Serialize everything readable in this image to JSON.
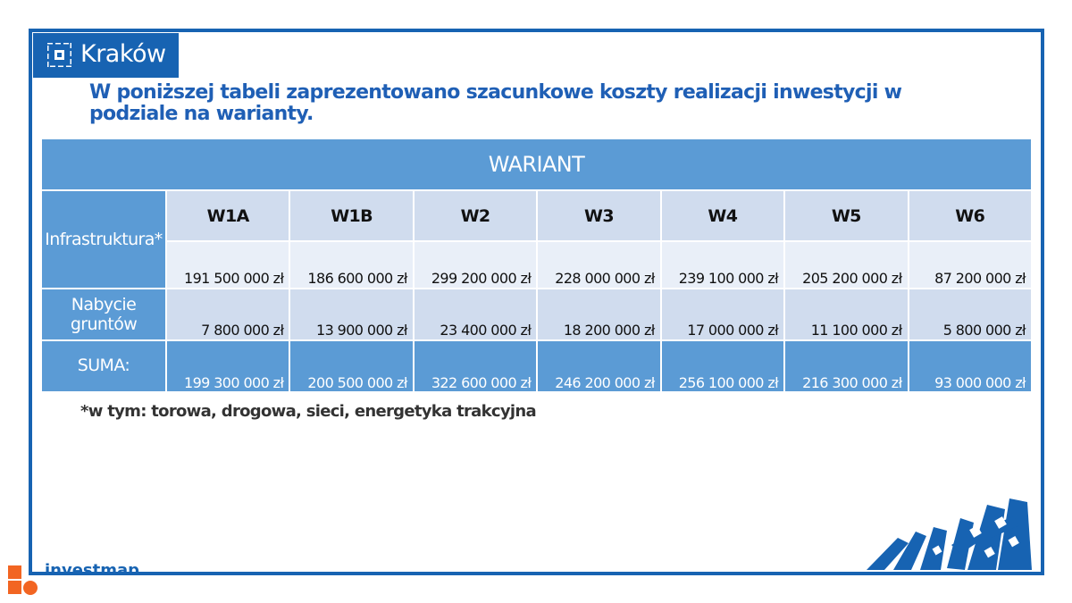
{
  "logo": {
    "name": "Kraków",
    "icon": "krakow-logo-icon"
  },
  "heading": "W poniższej tabeli zaprezentowano szacunkowe koszty realizacji inwestycji w podziale na warianty.",
  "table": {
    "header": "WARIANT",
    "variants": [
      "W1A",
      "W1B",
      "W2",
      "W3",
      "W4",
      "W5",
      "W6"
    ],
    "rows": [
      {
        "label": "Infrastruktura*",
        "values": [
          "191 500 000 zł",
          "186 600 000 zł",
          "299 200 000 zł",
          "228 000 000 zł",
          "239 100 000 zł",
          "205 200 000 zł",
          "87 200 000 zł"
        ]
      },
      {
        "label": "Nabycie gruntów",
        "values": [
          "7 800 000 zł",
          "13 900 000 zł",
          "23 400 000 zł",
          "18 200 000 zł",
          "17 000 000 zł",
          "11 100 000 zł",
          "5 800 000 zł"
        ]
      },
      {
        "label": "SUMA:",
        "values": [
          "199 300 000 zł",
          "200 500 000 zł",
          "322 600 000 zł",
          "246 200 000 zł",
          "256 100 000 zł",
          "216 300 000 zł",
          "93 000 000 zł"
        ]
      }
    ]
  },
  "footnote": "*w tym: torowa, drogowa, sieci, energetyka trakcyjna",
  "watermark": {
    "text": "investmap",
    "icon": "investmap-logo-icon"
  },
  "colors": {
    "brand": "#1763b2",
    "header_fill": "#5b9bd5",
    "row_fill": "#d0dcee",
    "light_fill": "#e9eff8",
    "heading_text": "#1f5fb5",
    "watermark_orange": "#f26522"
  }
}
